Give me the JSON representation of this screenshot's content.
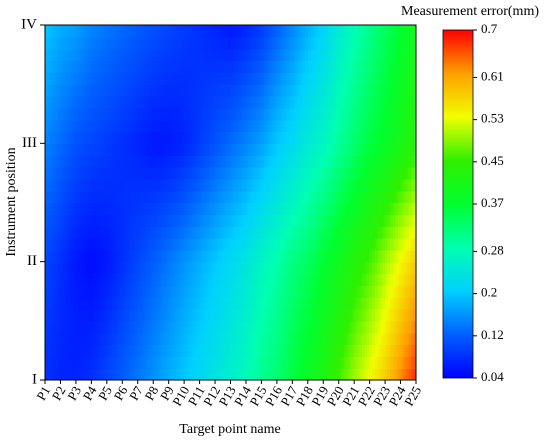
{
  "chart_data": {
    "type": "contour",
    "colorbar_label": "Measurement error(mm)",
    "x_label": "Target point name",
    "y_label": "Instrument position",
    "categories": [
      "P1",
      "P2",
      "P3",
      "P4",
      "P5",
      "P6",
      "P7",
      "P8",
      "P9",
      "P10",
      "P11",
      "P12",
      "P13",
      "P14",
      "P15",
      "P16",
      "P17",
      "P18",
      "P19",
      "P20",
      "P21",
      "P22",
      "P23",
      "P24",
      "P25"
    ],
    "y_categories": [
      "I",
      "II",
      "III",
      "IV"
    ],
    "z": [
      [
        0.08,
        0.07,
        0.07,
        0.08,
        0.1,
        0.12,
        0.14,
        0.16,
        0.18,
        0.2,
        0.22,
        0.24,
        0.26,
        0.28,
        0.31,
        0.33,
        0.36,
        0.39,
        0.42,
        0.46,
        0.5,
        0.54,
        0.58,
        0.63,
        0.68
      ],
      [
        0.1,
        0.08,
        0.06,
        0.05,
        0.06,
        0.08,
        0.1,
        0.12,
        0.14,
        0.16,
        0.18,
        0.2,
        0.22,
        0.24,
        0.27,
        0.29,
        0.32,
        0.34,
        0.37,
        0.4,
        0.43,
        0.46,
        0.5,
        0.54,
        0.58
      ],
      [
        0.15,
        0.13,
        0.11,
        0.1,
        0.09,
        0.08,
        0.07,
        0.06,
        0.06,
        0.07,
        0.09,
        0.11,
        0.13,
        0.15,
        0.17,
        0.2,
        0.22,
        0.25,
        0.27,
        0.3,
        0.33,
        0.36,
        0.38,
        0.41,
        0.44
      ],
      [
        0.2,
        0.18,
        0.17,
        0.15,
        0.14,
        0.13,
        0.12,
        0.11,
        0.1,
        0.09,
        0.08,
        0.07,
        0.06,
        0.07,
        0.09,
        0.12,
        0.15,
        0.18,
        0.21,
        0.25,
        0.28,
        0.31,
        0.34,
        0.37,
        0.4
      ]
    ],
    "zlim": [
      0.04,
      0.7
    ],
    "zticks": [
      0.04,
      0.12,
      0.2,
      0.28,
      0.37,
      0.45,
      0.53,
      0.61,
      0.7
    ],
    "colors": [
      "#0000ff",
      "#0060ff",
      "#00d0ff",
      "#00ffb0",
      "#00ff30",
      "#30f000",
      "#f0ff00",
      "#ffa000",
      "#ff0000"
    ]
  }
}
